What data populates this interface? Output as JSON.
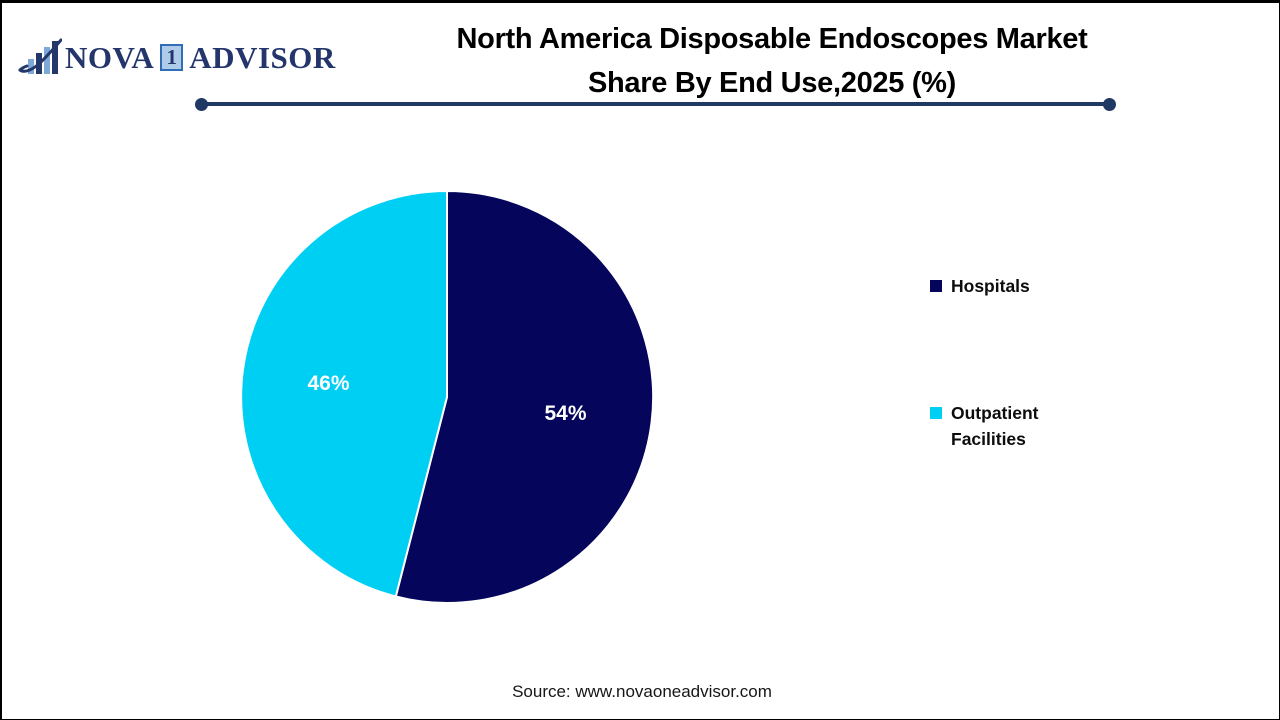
{
  "logo": {
    "icon": "bar-chart-growth-icon",
    "name_part1": "NOVA",
    "name_digit": "1",
    "name_part2": "ADVISOR"
  },
  "title": {
    "line1": "North America Disposable Endoscopes Market",
    "line2": "Share By End Use,2025 (%)"
  },
  "chart_data": {
    "type": "pie",
    "title": "North America Disposable Endoscopes Market Share By End Use,2025 (%)",
    "categories": [
      "Hospitals",
      "Outpatient Facilities"
    ],
    "values": [
      54,
      46
    ],
    "labels": [
      "54%",
      "46%"
    ],
    "colors": [
      "#04055B",
      "#00CFF4"
    ],
    "label_color": "#ffffff",
    "legend_position": "right",
    "start_angle_deg": 0,
    "direction": "clockwise"
  },
  "footer": {
    "source_text": "Source: www.novaoneadvisor.com"
  }
}
